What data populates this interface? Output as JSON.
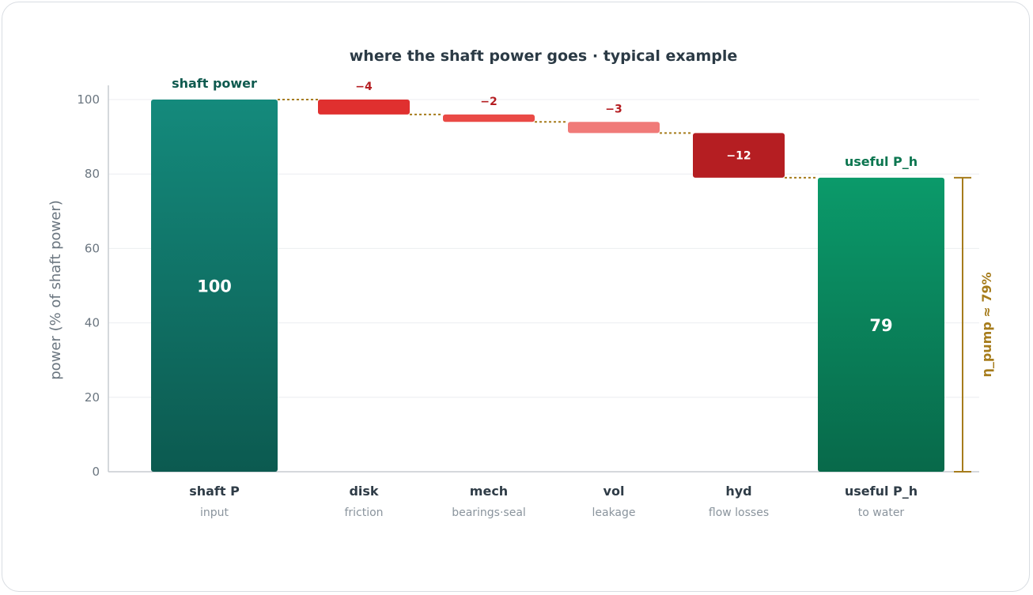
{
  "chart_data": {
    "type": "bar",
    "subtype": "waterfall",
    "title": "where the shaft power goes · typical example",
    "ylabel": "power (% of shaft power)",
    "ylim": [
      0,
      100
    ],
    "yticks": [
      0,
      20,
      40,
      60,
      80,
      100
    ],
    "grid": true,
    "steps": [
      {
        "category": "shaft P",
        "sub": "input",
        "kind": "total",
        "value": 100,
        "label": "100",
        "top_label": "shaft power",
        "color": "#14806f"
      },
      {
        "category": "disk",
        "sub": "friction",
        "kind": "loss",
        "value": -4,
        "label": "−4",
        "color": "#e0302f"
      },
      {
        "category": "mech",
        "sub": "bearings·seal",
        "kind": "loss",
        "value": -2,
        "label": "−2",
        "color": "#ea4a46"
      },
      {
        "category": "vol",
        "sub": "leakage",
        "kind": "loss",
        "value": -3,
        "label": "−3",
        "color": "#f07a78"
      },
      {
        "category": "hyd",
        "sub": "flow losses",
        "kind": "loss",
        "value": -12,
        "label": "−12",
        "color": "#b51e22"
      },
      {
        "category": "useful P_h",
        "sub": "to water",
        "kind": "total",
        "value": 79,
        "label": "79",
        "top_label": "useful P_h",
        "color": "#0c9468"
      }
    ],
    "efficiency_annotation": "η_pump ≈ 79%",
    "colors": {
      "loss_label": "#b51e22",
      "shaft_label": "#0f5a4f",
      "useful_label": "#0c7650",
      "connector": "#a67c1c",
      "efficiency": "#a67c1c",
      "axis": "#c7ccd1",
      "grid": "#eceef0"
    }
  }
}
